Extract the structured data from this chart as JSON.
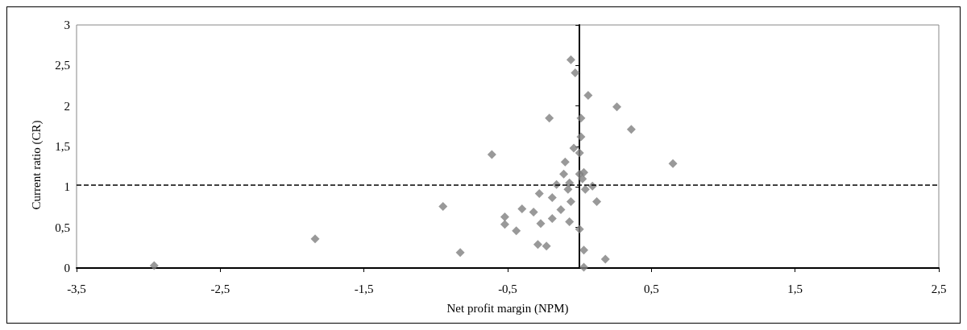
{
  "chart_data": {
    "type": "scatter",
    "xlabel": "Net profit margin (NPM)",
    "ylabel": "Current ratio (CR)",
    "x": [
      -0.06,
      -0.03,
      0.06,
      0.26,
      -0.21,
      0.01,
      0.36,
      0.01,
      -0.04,
      0.0,
      -0.61,
      0.65,
      -0.1,
      0.0,
      0.03,
      -0.11,
      -0.16,
      -0.07,
      0.02,
      0.04,
      0.09,
      -0.08,
      -0.28,
      -0.19,
      -0.06,
      0.12,
      -0.4,
      -0.32,
      -0.13,
      -0.52,
      -0.52,
      -0.19,
      -0.27,
      -0.07,
      -0.44,
      0.0,
      -0.29,
      -0.23,
      -0.83,
      0.03,
      0.18,
      0.03,
      -2.96,
      -1.84,
      -0.95
    ],
    "values": [
      2.57,
      2.41,
      2.13,
      1.99,
      1.85,
      1.85,
      1.71,
      1.62,
      1.48,
      1.42,
      1.4,
      1.29,
      1.31,
      1.16,
      1.18,
      1.16,
      1.03,
      1.05,
      1.1,
      0.97,
      1.01,
      0.97,
      0.92,
      0.87,
      0.82,
      0.82,
      0.73,
      0.69,
      0.72,
      0.63,
      0.54,
      0.61,
      0.55,
      0.57,
      0.46,
      0.48,
      0.29,
      0.27,
      0.19,
      0.22,
      0.11,
      0.01,
      0.03,
      0.36,
      0.76
    ],
    "color": "#808080",
    "marker": "diamond",
    "xlim": [
      -3.5,
      2.5
    ],
    "xticks": [
      {
        "value": -3.5,
        "label": "-3,5"
      },
      {
        "value": -2.5,
        "label": "-2,5"
      },
      {
        "value": -1.5,
        "label": "-1,5"
      },
      {
        "value": -0.5,
        "label": "-0,5"
      },
      {
        "value": 0.5,
        "label": "0,5"
      },
      {
        "value": 1.5,
        "label": "1,5"
      },
      {
        "value": 2.5,
        "label": "2,5"
      }
    ],
    "ylim": [
      0,
      3
    ],
    "yticks": [
      0,
      {
        "value": 0.5,
        "label": "0,5"
      },
      1,
      {
        "value": 1.5,
        "label": "1,5"
      },
      2,
      {
        "value": 2.5,
        "label": "2,5"
      },
      3
    ],
    "ref_lines": [
      {
        "axis": "y",
        "value": 1.03,
        "color": "#000000",
        "line_style": "dashed"
      }
    ]
  }
}
